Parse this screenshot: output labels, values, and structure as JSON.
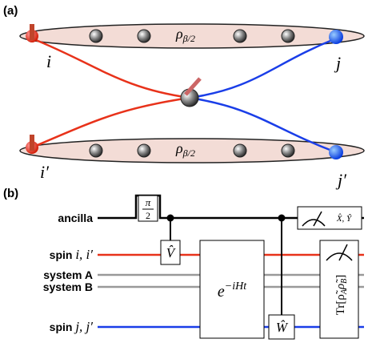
{
  "panel_a": {
    "label": "(a)",
    "density": {
      "symbol": "ρ",
      "subscript": "β/2"
    },
    "sites": {
      "i": "i",
      "j": "j",
      "i_prime": "i′",
      "j_prime": "j′"
    }
  },
  "panel_b": {
    "label": "(b)",
    "wires": {
      "ancilla": "ancilla",
      "spin_i": {
        "text": "spin ",
        "math": "i, i′"
      },
      "system_a": "system A",
      "system_b": "system B",
      "spin_j": {
        "text": "spin ",
        "math": "j, j′"
      }
    },
    "gates": {
      "pulse": "π",
      "pulse_den": "2",
      "v": "V̂",
      "evolution": "e",
      "evolution_exp": "−iHt",
      "w": "Ŵ",
      "measure_xy": "X̂, Ŷ",
      "trace": "Tr[ρ̃",
      "trace_a": "A",
      "trace_mid": "ρ̃",
      "trace_b": "B",
      "trace_end": "]"
    }
  }
}
